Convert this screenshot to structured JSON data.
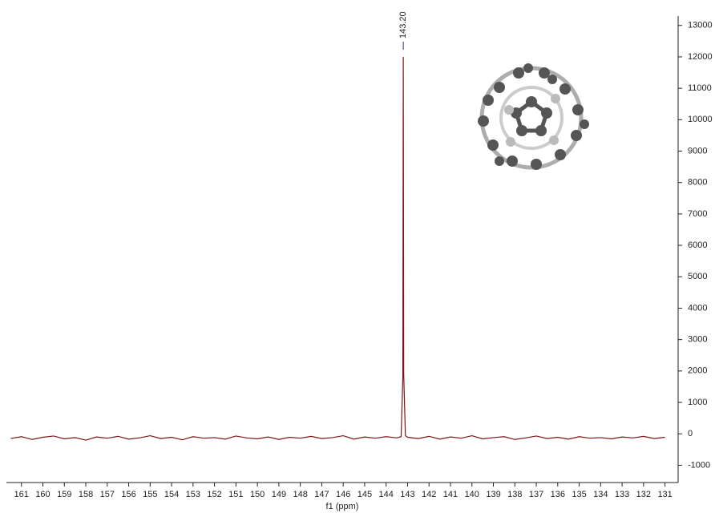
{
  "chart_data": {
    "type": "line",
    "x_label": "f1 (ppm)",
    "x": [
      161.5,
      161,
      160.5,
      160,
      159.5,
      159,
      158.5,
      158,
      157.5,
      157,
      156.5,
      156,
      155.5,
      155,
      154.5,
      154,
      153.5,
      153,
      152.5,
      152,
      151.5,
      151,
      150.5,
      150,
      149.5,
      149,
      148.5,
      148,
      147.5,
      147,
      146.5,
      146,
      145.5,
      145,
      144.5,
      144,
      143.5,
      143.3,
      143.22,
      143.2,
      143.18,
      143.1,
      143,
      142.5,
      142,
      141.5,
      141,
      140.5,
      140,
      139.5,
      139,
      138.5,
      138,
      137.5,
      137,
      136.5,
      136,
      135.5,
      135,
      134.5,
      134,
      133.5,
      133,
      132.5,
      132,
      131.5,
      131
    ],
    "series": [
      {
        "color": "#7b1414",
        "values": [
          -150,
          -90,
          -180,
          -110,
          -70,
          -160,
          -120,
          -200,
          -100,
          -140,
          -80,
          -170,
          -130,
          -60,
          -150,
          -110,
          -190,
          -90,
          -140,
          -120,
          -170,
          -70,
          -130,
          -160,
          -100,
          -180,
          -110,
          -140,
          -80,
          -150,
          -120,
          -60,
          -170,
          -100,
          -140,
          -90,
          -130,
          -90,
          1800,
          12000,
          1900,
          -60,
          -110,
          -150,
          -80,
          -170,
          -100,
          -140,
          -60,
          -160,
          -120,
          -90,
          -180,
          -130,
          -70,
          -150,
          -110,
          -170,
          -90,
          -140,
          -120,
          -160,
          -100,
          -130,
          -80,
          -150,
          -110
        ]
      }
    ],
    "xlim": [
      161.7,
      130.5
    ],
    "xticks": [
      161,
      160,
      159,
      158,
      157,
      156,
      155,
      154,
      153,
      152,
      151,
      150,
      149,
      148,
      147,
      146,
      145,
      144,
      143,
      142,
      141,
      140,
      139,
      138,
      137,
      136,
      135,
      134,
      133,
      132,
      131
    ],
    "ylim": [
      -1500,
      13300
    ],
    "yticks": [
      -1000,
      0,
      1000,
      2000,
      3000,
      4000,
      5000,
      6000,
      7000,
      8000,
      9000,
      10000,
      11000,
      12000,
      13000
    ],
    "annotations": [
      {
        "value": 143.2,
        "label": "143.20",
        "color": "#2a2a8a"
      }
    ]
  }
}
